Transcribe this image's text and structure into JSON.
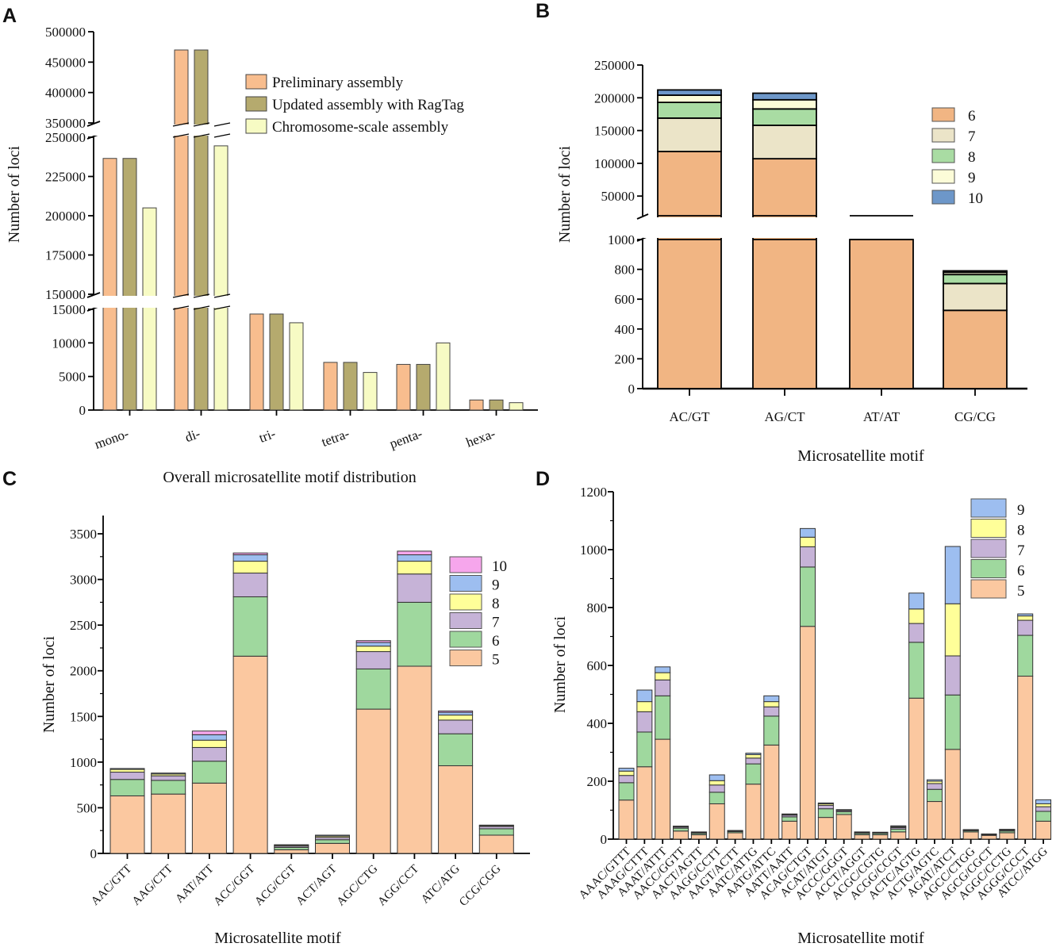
{
  "colors": {
    "prelim": "#f8bd8e",
    "ragtag": "#b5aa6e",
    "chrom": "#f7fbc4",
    "b6": "#f1b583",
    "b7": "#ebe4c8",
    "b8": "#a9dca3",
    "b9": "#fcfcd8",
    "b10": "#6d97c9",
    "c5": "#fbc8a0",
    "c6": "#9fd89e",
    "c7": "#c6b3d7",
    "c8": "#ffff99",
    "c9": "#9dbef0",
    "c10": "#f6a6ec"
  },
  "chart_data": [
    {
      "panel": "A",
      "type": "bar",
      "xlabel": "Overall microsatellite motif distribution",
      "ylabel": "Number of loci",
      "categories": [
        "mono-",
        "di-",
        "tri-",
        "tetra-",
        "penta-",
        "hexa-"
      ],
      "series": [
        {
          "name": "Preliminary assembly",
          "values": [
            236500,
            470000,
            14300,
            7100,
            6800,
            1500
          ]
        },
        {
          "name": "Updated assembly with RagTag",
          "values": [
            236500,
            470000,
            14300,
            7100,
            6800,
            1500
          ]
        },
        {
          "name": "Chromosome-scale assembly",
          "values": [
            205000,
            244500,
            13000,
            5600,
            10000,
            1100
          ]
        }
      ],
      "y_segments": [
        {
          "range": [
            0,
            15000
          ],
          "ticks": [
            "0",
            "5000",
            "10000",
            "15000"
          ]
        },
        {
          "range": [
            150000,
            250000
          ],
          "ticks": [
            "150000",
            "175000",
            "200000",
            "225000",
            "250000"
          ]
        },
        {
          "range": [
            350000,
            500000
          ],
          "ticks": [
            "350000",
            "400000",
            "450000",
            "500000"
          ]
        }
      ]
    },
    {
      "panel": "B",
      "type": "bar",
      "stacked": true,
      "xlabel": "Microsatellite motif",
      "ylabel": "Number of loci",
      "categories": [
        "AC/GT",
        "AG/CT",
        "AT/AT",
        "CG/CG"
      ],
      "series": [
        {
          "name": "6",
          "values": [
            118000,
            107000,
            1000,
            525
          ]
        },
        {
          "name": "7",
          "values": [
            51000,
            51000,
            0,
            180
          ]
        },
        {
          "name": "8",
          "values": [
            24000,
            25000,
            0,
            60
          ]
        },
        {
          "name": "9",
          "values": [
            11000,
            14000,
            0,
            15
          ]
        },
        {
          "name": "10",
          "values": [
            8000,
            10000,
            0,
            10
          ]
        }
      ],
      "y_segments": [
        {
          "range": [
            0,
            1000
          ],
          "ticks": [
            "0",
            "200",
            "400",
            "600",
            "800",
            "1000"
          ]
        },
        {
          "range": [
            20000,
            250000
          ],
          "ticks": [
            "50000",
            "100000",
            "150000",
            "200000",
            "250000"
          ]
        }
      ]
    },
    {
      "panel": "C",
      "type": "bar",
      "stacked": true,
      "xlabel": "Microsatellite motif",
      "ylabel": "Number of loci",
      "categories": [
        "AAC/GTT",
        "AAG/CTT",
        "AAT/ATT",
        "ACC/GGT",
        "ACG/CGT",
        "ACT/AGT",
        "AGC/CTG",
        "AGG/CCT",
        "ATC/ATG",
        "CCG/CGG"
      ],
      "series": [
        {
          "name": "5",
          "values": [
            630,
            650,
            770,
            2160,
            40,
            110,
            1580,
            2050,
            960,
            200
          ]
        },
        {
          "name": "6",
          "values": [
            180,
            150,
            240,
            650,
            25,
            40,
            440,
            700,
            350,
            70
          ]
        },
        {
          "name": "7",
          "values": [
            80,
            50,
            150,
            260,
            15,
            25,
            190,
            310,
            150,
            25
          ]
        },
        {
          "name": "8",
          "values": [
            30,
            20,
            80,
            130,
            10,
            15,
            60,
            140,
            55,
            10
          ]
        },
        {
          "name": "9",
          "values": [
            10,
            10,
            60,
            70,
            5,
            10,
            40,
            70,
            30,
            5
          ]
        },
        {
          "name": "10",
          "values": [
            0,
            0,
            40,
            20,
            0,
            0,
            20,
            40,
            15,
            0
          ]
        }
      ],
      "ylim": [
        0,
        3700
      ],
      "yticks": [
        "0",
        "500",
        "1000",
        "1500",
        "2000",
        "2500",
        "3000",
        "3500"
      ]
    },
    {
      "panel": "D",
      "type": "bar",
      "stacked": true,
      "xlabel": "Microsatellite motif",
      "ylabel": "Number of loci",
      "categories": [
        "AAAC/GTTT",
        "AAAG/CTTT",
        "AAAT/ATTT",
        "AACC/GGTT",
        "AACT/AGTT",
        "AAGG/CCTT",
        "AAGT/ACTT",
        "AATC/ATTG",
        "AATG/ATTC",
        "AATT/AATT",
        "ACAG/CTGT",
        "ACAT/ATGT",
        "ACCC/GGGT",
        "ACCT/AGGT",
        "ACGC/CGTG",
        "ACGG/CCGT",
        "ACTC/AGTG",
        "ACTG/AGTC",
        "AGAT/ATCT",
        "AGCC/CTGG",
        "AGCG/CGCT",
        "AGGC/CCTG",
        "AGGG/CCCT",
        "ATCC/ATGG"
      ],
      "series": [
        {
          "name": "5",
          "values": [
            135,
            250,
            345,
            28,
            15,
            122,
            22,
            190,
            325,
            62,
            735,
            75,
            85,
            15,
            15,
            25,
            487,
            130,
            310,
            25,
            13,
            22,
            563,
            62
          ]
        },
        {
          "name": "6",
          "values": [
            60,
            120,
            150,
            10,
            5,
            40,
            4,
            70,
            100,
            15,
            205,
            30,
            10,
            5,
            5,
            10,
            193,
            42,
            188,
            4,
            2,
            6,
            141,
            34
          ]
        },
        {
          "name": "7",
          "values": [
            25,
            70,
            55,
            4,
            2,
            25,
            2,
            20,
            32,
            6,
            70,
            12,
            4,
            2,
            2,
            5,
            65,
            20,
            135,
            2,
            1,
            3,
            52,
            16
          ]
        },
        {
          "name": "8",
          "values": [
            15,
            35,
            25,
            2,
            2,
            15,
            1,
            12,
            18,
            2,
            33,
            5,
            2,
            2,
            1,
            3,
            50,
            8,
            180,
            1,
            1,
            2,
            15,
            10
          ]
        },
        {
          "name": "9",
          "values": [
            10,
            40,
            20,
            1,
            1,
            20,
            1,
            5,
            20,
            2,
            30,
            3,
            1,
            1,
            1,
            3,
            55,
            5,
            198,
            1,
            1,
            1,
            7,
            14
          ]
        }
      ],
      "ylim": [
        0,
        1200
      ],
      "yticks": [
        "0",
        "200",
        "400",
        "600",
        "800",
        "1000",
        "1200"
      ]
    }
  ]
}
